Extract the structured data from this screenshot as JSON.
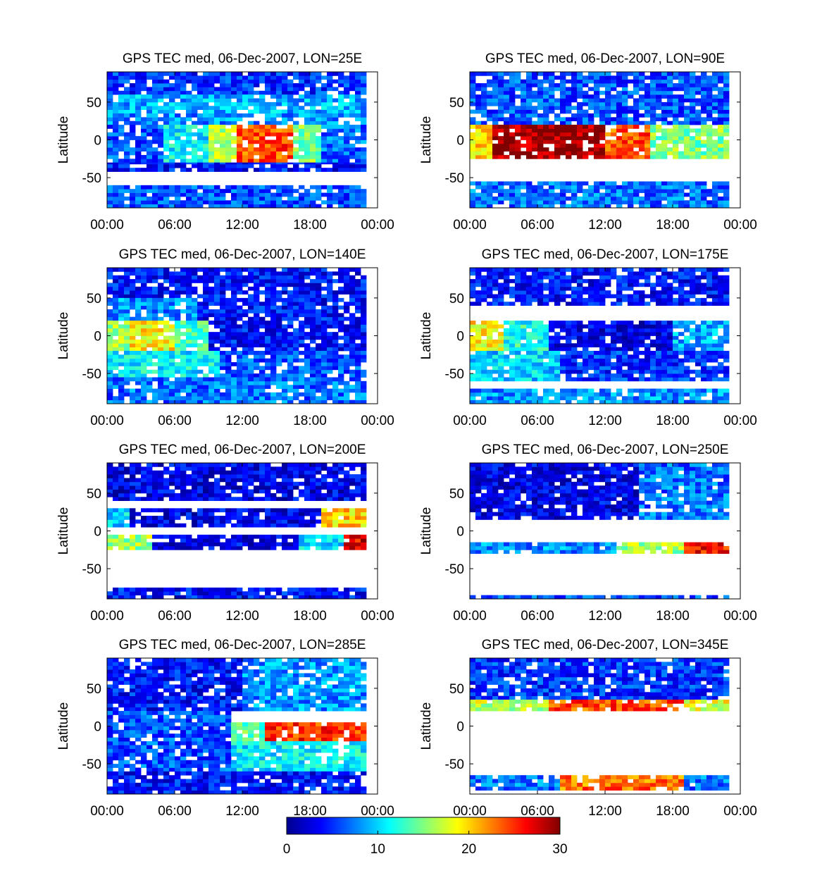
{
  "chart_data": [
    {
      "type": "heatmap",
      "title": "GPS TEC med, 06-Dec-2007, LON=25E",
      "ylabel": "Latitude",
      "xlim": [
        0,
        24
      ],
      "ylim": [
        -90,
        90
      ],
      "x_ticks": [
        "00:00",
        "06:00",
        "12:00",
        "18:00",
        "00:00"
      ],
      "y_ticks": [
        "50",
        "0",
        "-50"
      ],
      "y_tick_values": [
        50,
        0,
        -50
      ],
      "bands": [
        {
          "lat": [
            60,
            90
          ],
          "x": [
            0,
            23
          ],
          "value": 5
        },
        {
          "lat": [
            35,
            60
          ],
          "x": [
            0,
            23
          ],
          "value": 9
        },
        {
          "lat": [
            20,
            35
          ],
          "x": [
            0,
            23
          ],
          "value": 8
        },
        {
          "lat": [
            -30,
            20
          ],
          "x": [
            0,
            5
          ],
          "value": 6
        },
        {
          "lat": [
            -30,
            20
          ],
          "x": [
            5,
            9
          ],
          "value": 11
        },
        {
          "lat": [
            -30,
            20
          ],
          "x": [
            9,
            11.5
          ],
          "value": 17
        },
        {
          "lat": [
            -30,
            20
          ],
          "x": [
            11.5,
            16.5
          ],
          "value": 24
        },
        {
          "lat": [
            -30,
            20
          ],
          "x": [
            16.5,
            19
          ],
          "value": 15
        },
        {
          "lat": [
            -30,
            20
          ],
          "x": [
            19,
            23
          ],
          "value": 7
        },
        {
          "lat": [
            -42,
            -30
          ],
          "x": [
            0,
            23
          ],
          "value": 4
        },
        {
          "lat": [
            -90,
            -60
          ],
          "x": [
            0,
            23
          ],
          "value": 6
        }
      ]
    },
    {
      "type": "heatmap",
      "title": "GPS TEC med, 06-Dec-2007, LON=90E",
      "ylabel": "Latitude",
      "xlim": [
        0,
        24
      ],
      "ylim": [
        -90,
        90
      ],
      "x_ticks": [
        "00:00",
        "06:00",
        "12:00",
        "18:00",
        "00:00"
      ],
      "y_ticks": [
        "50",
        "0",
        "-50"
      ],
      "y_tick_values": [
        50,
        0,
        -50
      ],
      "bands": [
        {
          "lat": [
            20,
            90
          ],
          "x": [
            0,
            23
          ],
          "value": 6
        },
        {
          "lat": [
            -25,
            20
          ],
          "x": [
            0,
            2
          ],
          "value": 20
        },
        {
          "lat": [
            -25,
            20
          ],
          "x": [
            2,
            12
          ],
          "value": 29
        },
        {
          "lat": [
            -25,
            20
          ],
          "x": [
            12,
            16
          ],
          "value": 24
        },
        {
          "lat": [
            -25,
            20
          ],
          "x": [
            16,
            23
          ],
          "value": 15
        },
        {
          "lat": [
            -90,
            -55
          ],
          "x": [
            0,
            23
          ],
          "value": 7
        }
      ]
    },
    {
      "type": "heatmap",
      "title": "GPS TEC med, 06-Dec-2007, LON=140E",
      "ylabel": "Latitude",
      "xlim": [
        0,
        24
      ],
      "ylim": [
        -90,
        90
      ],
      "x_ticks": [
        "00:00",
        "06:00",
        "12:00",
        "18:00",
        "00:00"
      ],
      "y_ticks": [
        "50",
        "0",
        "-50"
      ],
      "y_tick_values": [
        50,
        0,
        -50
      ],
      "bands": [
        {
          "lat": [
            50,
            90
          ],
          "x": [
            0,
            23
          ],
          "value": 4
        },
        {
          "lat": [
            20,
            50
          ],
          "x": [
            0,
            8
          ],
          "value": 8
        },
        {
          "lat": [
            20,
            50
          ],
          "x": [
            8,
            23
          ],
          "value": 4
        },
        {
          "lat": [
            -20,
            20
          ],
          "x": [
            0,
            2
          ],
          "value": 16
        },
        {
          "lat": [
            -20,
            20
          ],
          "x": [
            2,
            6
          ],
          "value": 19
        },
        {
          "lat": [
            -20,
            20
          ],
          "x": [
            6,
            9
          ],
          "value": 13
        },
        {
          "lat": [
            -20,
            20
          ],
          "x": [
            9,
            23
          ],
          "value": 4
        },
        {
          "lat": [
            -55,
            -20
          ],
          "x": [
            0,
            10
          ],
          "value": 11
        },
        {
          "lat": [
            -55,
            -20
          ],
          "x": [
            10,
            23
          ],
          "value": 6
        },
        {
          "lat": [
            -90,
            -55
          ],
          "x": [
            0,
            23
          ],
          "value": 7
        }
      ]
    },
    {
      "type": "heatmap",
      "title": "GPS TEC med, 06-Dec-2007, LON=175E",
      "ylabel": "Latitude",
      "xlim": [
        0,
        24
      ],
      "ylim": [
        -90,
        90
      ],
      "x_ticks": [
        "00:00",
        "06:00",
        "12:00",
        "18:00",
        "00:00"
      ],
      "y_ticks": [
        "50",
        "0",
        "-50"
      ],
      "y_tick_values": [
        50,
        0,
        -50
      ],
      "bands": [
        {
          "lat": [
            40,
            90
          ],
          "x": [
            0,
            23
          ],
          "value": 4
        },
        {
          "lat": [
            -20,
            20
          ],
          "x": [
            0,
            3
          ],
          "value": 19
        },
        {
          "lat": [
            -20,
            20
          ],
          "x": [
            3,
            7
          ],
          "value": 12
        },
        {
          "lat": [
            -20,
            20
          ],
          "x": [
            7,
            18
          ],
          "value": 3
        },
        {
          "lat": [
            -20,
            20
          ],
          "x": [
            18,
            23
          ],
          "value": 9
        },
        {
          "lat": [
            -60,
            -20
          ],
          "x": [
            0,
            8
          ],
          "value": 10
        },
        {
          "lat": [
            -60,
            -20
          ],
          "x": [
            8,
            23
          ],
          "value": 5
        },
        {
          "lat": [
            -90,
            -70
          ],
          "x": [
            0,
            23
          ],
          "value": 8
        }
      ]
    },
    {
      "type": "heatmap",
      "title": "GPS TEC med, 06-Dec-2007, LON=200E",
      "ylabel": "Latitude",
      "xlim": [
        0,
        24
      ],
      "ylim": [
        -90,
        90
      ],
      "x_ticks": [
        "00:00",
        "06:00",
        "12:00",
        "18:00",
        "00:00"
      ],
      "y_ticks": [
        "50",
        "0",
        "-50"
      ],
      "y_tick_values": [
        50,
        0,
        -50
      ],
      "bands": [
        {
          "lat": [
            40,
            90
          ],
          "x": [
            0,
            23
          ],
          "value": 3
        },
        {
          "lat": [
            5,
            30
          ],
          "x": [
            0,
            2
          ],
          "value": 10
        },
        {
          "lat": [
            5,
            30
          ],
          "x": [
            2,
            19
          ],
          "value": 3
        },
        {
          "lat": [
            5,
            30
          ],
          "x": [
            19,
            23
          ],
          "value": 20
        },
        {
          "lat": [
            -25,
            -5
          ],
          "x": [
            0,
            4
          ],
          "value": 16
        },
        {
          "lat": [
            -25,
            -5
          ],
          "x": [
            4,
            17
          ],
          "value": 3
        },
        {
          "lat": [
            -25,
            -5
          ],
          "x": [
            17,
            21
          ],
          "value": 10
        },
        {
          "lat": [
            -25,
            -5
          ],
          "x": [
            21,
            23
          ],
          "value": 27
        },
        {
          "lat": [
            -90,
            -75
          ],
          "x": [
            0,
            23
          ],
          "value": 4
        }
      ]
    },
    {
      "type": "heatmap",
      "title": "GPS TEC med, 06-Dec-2007, LON=250E",
      "ylabel": "Latitude",
      "xlim": [
        0,
        24
      ],
      "ylim": [
        -90,
        90
      ],
      "x_ticks": [
        "00:00",
        "06:00",
        "12:00",
        "18:00",
        "00:00"
      ],
      "y_ticks": [
        "50",
        "0",
        "-50"
      ],
      "y_tick_values": [
        50,
        0,
        -50
      ],
      "bands": [
        {
          "lat": [
            15,
            90
          ],
          "x": [
            0,
            15
          ],
          "value": 3
        },
        {
          "lat": [
            15,
            90
          ],
          "x": [
            15,
            23
          ],
          "value": 7
        },
        {
          "lat": [
            -30,
            -15
          ],
          "x": [
            0,
            13
          ],
          "value": 8
        },
        {
          "lat": [
            -30,
            -15
          ],
          "x": [
            13,
            19
          ],
          "value": 16
        },
        {
          "lat": [
            -30,
            -15
          ],
          "x": [
            19,
            23
          ],
          "value": 26
        },
        {
          "lat": [
            -90,
            -85
          ],
          "x": [
            0,
            23
          ],
          "value": 6
        }
      ]
    },
    {
      "type": "heatmap",
      "title": "GPS TEC med, 06-Dec-2007, LON=285E",
      "ylabel": "Latitude",
      "xlim": [
        0,
        24
      ],
      "ylim": [
        -90,
        90
      ],
      "x_ticks": [
        "00:00",
        "06:00",
        "12:00",
        "18:00",
        "00:00"
      ],
      "y_ticks": [
        "50",
        "0",
        "-50"
      ],
      "y_tick_values": [
        50,
        0,
        -50
      ],
      "bands": [
        {
          "lat": [
            20,
            90
          ],
          "x": [
            0,
            12
          ],
          "value": 4
        },
        {
          "lat": [
            20,
            90
          ],
          "x": [
            12,
            23
          ],
          "value": 8
        },
        {
          "lat": [
            -60,
            20
          ],
          "x": [
            0,
            11
          ],
          "value": 6
        },
        {
          "lat": [
            -20,
            5
          ],
          "x": [
            11,
            14
          ],
          "value": 14
        },
        {
          "lat": [
            -20,
            5
          ],
          "x": [
            14,
            23
          ],
          "value": 25
        },
        {
          "lat": [
            -60,
            -20
          ],
          "x": [
            11,
            23
          ],
          "value": 11
        },
        {
          "lat": [
            -90,
            -60
          ],
          "x": [
            0,
            23
          ],
          "value": 4
        }
      ]
    },
    {
      "type": "heatmap",
      "title": "GPS TEC med, 06-Dec-2007, LON=345E",
      "ylabel": "Latitude",
      "xlim": [
        0,
        24
      ],
      "ylim": [
        -90,
        90
      ],
      "x_ticks": [
        "00:00",
        "06:00",
        "12:00",
        "18:00",
        "00:00"
      ],
      "y_ticks": [
        "50",
        "0",
        "-50"
      ],
      "y_tick_values": [
        50,
        0,
        -50
      ],
      "bands": [
        {
          "lat": [
            35,
            90
          ],
          "x": [
            0,
            23
          ],
          "value": 5
        },
        {
          "lat": [
            20,
            35
          ],
          "x": [
            0,
            7
          ],
          "value": 17
        },
        {
          "lat": [
            20,
            35
          ],
          "x": [
            7,
            19
          ],
          "value": 24
        },
        {
          "lat": [
            20,
            35
          ],
          "x": [
            19,
            23
          ],
          "value": 18
        },
        {
          "lat": [
            -85,
            -65
          ],
          "x": [
            0,
            8
          ],
          "value": 7
        },
        {
          "lat": [
            -85,
            -65
          ],
          "x": [
            8,
            19
          ],
          "value": 23
        },
        {
          "lat": [
            -85,
            -65
          ],
          "x": [
            19,
            23
          ],
          "value": 7
        }
      ]
    }
  ],
  "colorbar": {
    "ticks": [
      "0",
      "10",
      "20",
      "30"
    ],
    "tick_values": [
      0,
      10,
      20,
      30
    ],
    "range": [
      0,
      30
    ],
    "colormap": "jet",
    "colors": [
      "#00008f",
      "#0000ff",
      "#00ffff",
      "#ffff00",
      "#ff0000",
      "#800000"
    ]
  }
}
